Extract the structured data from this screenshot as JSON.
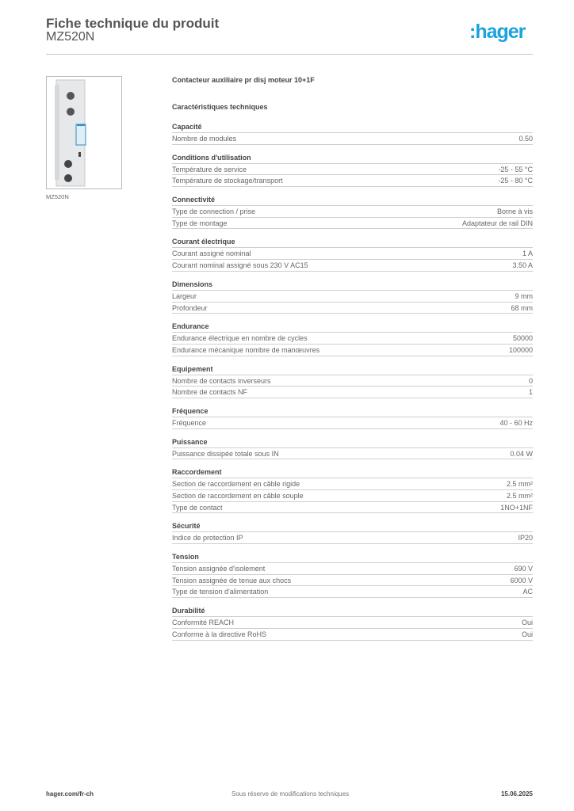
{
  "header": {
    "title": "Fiche technique du produit",
    "reference": "MZ520N",
    "logo_text": ":hager",
    "brand_color": "#1aa3dc"
  },
  "product": {
    "image_caption": "MZ520N",
    "description": "Contacteur auxiliaire pr disj moteur 10+1F",
    "characteristics_title": "Caractéristiques techniques"
  },
  "sections": [
    {
      "title": "Capacité",
      "rows": [
        [
          "Nombre de modules",
          "0.50"
        ]
      ]
    },
    {
      "title": "Conditions d'utilisation",
      "rows": [
        [
          "Température de service",
          "-25 - 55 °C"
        ],
        [
          "Température de stockage/transport",
          "-25 - 80 °C"
        ]
      ]
    },
    {
      "title": "Connectivité",
      "rows": [
        [
          "Type de connection / prise",
          "Borne à vis"
        ],
        [
          "Type de montage",
          "Adaptateur de rail DIN"
        ]
      ]
    },
    {
      "title": "Courant électrique",
      "rows": [
        [
          "Courant assigné nominal",
          "1 A"
        ],
        [
          "Courant nominal assigné sous 230 V AC15",
          "3.50 A"
        ]
      ]
    },
    {
      "title": "Dimensions",
      "rows": [
        [
          "Largeur",
          "9 mm"
        ],
        [
          "Profondeur",
          "68 mm"
        ]
      ]
    },
    {
      "title": "Endurance",
      "rows": [
        [
          "Endurance électrique en nombre de cycles",
          "50000"
        ],
        [
          "Endurance mécanique nombre de manœuvres",
          "100000"
        ]
      ]
    },
    {
      "title": "Equipement",
      "rows": [
        [
          "Nombre de contacts inverseurs",
          "0"
        ],
        [
          "Nombre de contacts NF",
          "1"
        ]
      ]
    },
    {
      "title": "Fréquence",
      "rows": [
        [
          "Fréquence",
          "40 - 60 Hz"
        ]
      ]
    },
    {
      "title": "Puissance",
      "rows": [
        [
          "Puissance dissipée totale sous IN",
          "0.04 W"
        ]
      ]
    },
    {
      "title": "Raccordement",
      "rows": [
        [
          "Section de raccordement en câble rigide",
          "2.5 mm²"
        ],
        [
          "Section de raccordement en câble souple",
          "2.5 mm²"
        ],
        [
          "Type de contact",
          "1NO+1NF"
        ]
      ]
    },
    {
      "title": "Sécurité",
      "rows": [
        [
          "Indice de protection IP",
          "IP20"
        ]
      ]
    },
    {
      "title": "Tension",
      "rows": [
        [
          "Tension assignée d'isolement",
          "690 V"
        ],
        [
          "Tension assignée de tenue aux chocs",
          "6000 V"
        ],
        [
          "Type de tension d'alimentation",
          "AC"
        ]
      ]
    },
    {
      "title": "Durabilité",
      "rows": [
        [
          "Conformité REACH",
          "Oui"
        ],
        [
          "Conforme à la directive RoHS",
          "Oui"
        ]
      ]
    }
  ],
  "footer": {
    "website": "hager.com/fr-ch",
    "notice": "Sous réserve de modifications techniques",
    "date": "15.06.2025"
  }
}
